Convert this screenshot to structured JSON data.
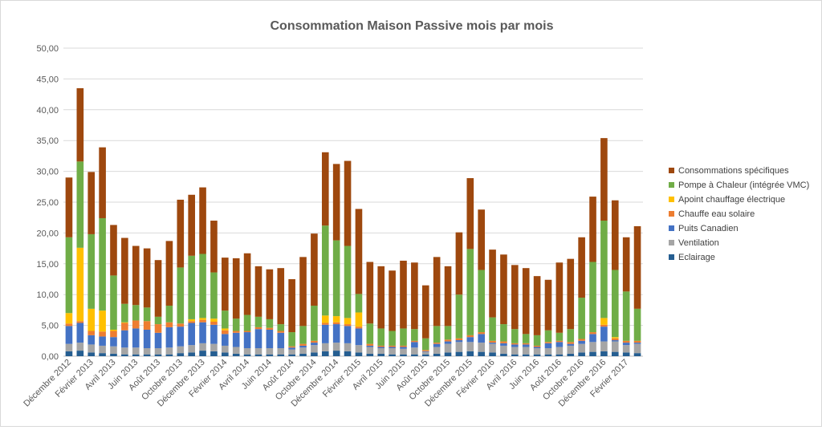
{
  "chart_data": {
    "type": "bar",
    "stacked": true,
    "title": "Consommation Maison Passive mois par mois",
    "xlabel": "",
    "ylabel": "",
    "ylim": [
      0,
      50
    ],
    "yticks": [
      "0,00",
      "5,00",
      "10,00",
      "15,00",
      "20,00",
      "25,00",
      "30,00",
      "35,00",
      "40,00",
      "45,00",
      "50,00"
    ],
    "grid": true,
    "legend_position": "right",
    "categories": [
      "Décembre 2012",
      "Janvier 2013",
      "Février 2013",
      "Mars 2013",
      "Avril 2013",
      "Mai 2013",
      "Juin 2013",
      "Juillet 2013",
      "Août 2013",
      "Septembre 2013",
      "Octobre 2013",
      "Novembre 2013",
      "Décembre 2013",
      "Janvier 2014",
      "Février 2014",
      "Mars 2014",
      "Avril 2014",
      "Mai 2014",
      "Juin 2014",
      "Juillet 2014",
      "Août 2014",
      "Septembre 2014",
      "Octobre 2014",
      "Novembre 2014",
      "Décembre 2014",
      "Janvier 2015",
      "Février 2015",
      "Mars 2015",
      "Avril 2015",
      "Mai 2015",
      "Juin 2015",
      "Juillet 2015",
      "Août 2015",
      "Septembre 2015",
      "Octobre 2015",
      "Novembre 2015",
      "Décembre 2015",
      "Janvier 2016",
      "Février 2016",
      "Mars 2016",
      "Avril 2016",
      "Mai 2016",
      "Juin 2016",
      "Juillet 2016",
      "Août 2016",
      "Septembre 2016",
      "Octobre 2016",
      "Novembre 2016",
      "Décembre 2016",
      "Janvier 2017",
      "Février 2017",
      "Mars 2017"
    ],
    "visible_x_labels": [
      "Décembre 2012",
      "Février 2013",
      "Avril 2013",
      "Juin 2013",
      "Août 2013",
      "Octobre 2013",
      "Décembre 2013",
      "Février 2014",
      "Avril 2014",
      "Juin 2014",
      "Août 2014",
      "Octobre 2014",
      "Décembre 2014",
      "Février 2015",
      "Avril 2015",
      "Juin 2015",
      "Août 2015",
      "Octobre 2015",
      "Décembre 2015",
      "Février 2016",
      "Avril 2016",
      "Juin 2016",
      "Août 2016",
      "Octobre 2016",
      "Décembre 2016",
      "Février 2017"
    ],
    "series": [
      {
        "name": "Eclairage",
        "color": "#255e91",
        "values": [
          0.8,
          0.9,
          0.6,
          0.5,
          0.4,
          0.3,
          0.3,
          0.3,
          0.3,
          0.3,
          0.5,
          0.6,
          0.9,
          0.8,
          0.6,
          0.4,
          0.3,
          0.3,
          0.3,
          0.3,
          0.3,
          0.4,
          0.6,
          0.8,
          0.9,
          0.8,
          0.6,
          0.4,
          0.4,
          0.3,
          0.3,
          0.3,
          0.3,
          0.4,
          0.6,
          0.7,
          0.8,
          0.7,
          0.6,
          0.4,
          0.3,
          0.3,
          0.3,
          0.3,
          0.3,
          0.4,
          0.6,
          0.7,
          0.8,
          0.7,
          0.6,
          0.5
        ]
      },
      {
        "name": "Ventilation",
        "color": "#a5a5a5",
        "values": [
          1.2,
          1.3,
          1.3,
          1.2,
          1.2,
          1.1,
          1.1,
          1.0,
          1.0,
          1.1,
          1.1,
          1.2,
          1.2,
          1.2,
          1.1,
          1.1,
          1.0,
          1.0,
          1.0,
          1.0,
          0.8,
          1.0,
          1.2,
          1.3,
          1.3,
          1.3,
          1.2,
          1.1,
          0.9,
          1.0,
          0.9,
          1.1,
          0.4,
          1.1,
          1.4,
          1.6,
          1.5,
          1.5,
          1.4,
          1.3,
          1.2,
          1.2,
          1.0,
          1.0,
          1.2,
          1.3,
          1.4,
          1.6,
          1.6,
          1.7,
          1.2,
          1.5
        ]
      },
      {
        "name": "Puits Canadien",
        "color": "#4472c4",
        "values": [
          2.9,
          3.2,
          1.5,
          1.5,
          1.5,
          2.8,
          3.1,
          3.0,
          2.5,
          3.3,
          3.2,
          3.6,
          3.4,
          3.1,
          1.9,
          2.3,
          2.6,
          3.1,
          3.0,
          2.5,
          0.3,
          0.3,
          0.4,
          3.0,
          3.0,
          2.8,
          2.7,
          0.2,
          0.2,
          0.2,
          0.3,
          0.9,
          0.1,
          0.5,
          0.4,
          0.3,
          0.8,
          1.4,
          0.2,
          0.4,
          0.4,
          0.4,
          0.2,
          0.8,
          0.8,
          0.3,
          0.5,
          1.3,
          2.4,
          0.2,
          0.4,
          0.2
        ]
      },
      {
        "name": "Chauffe eau solaire",
        "color": "#ed7d31",
        "values": [
          0.4,
          0.3,
          0.7,
          0.8,
          1.0,
          1.2,
          1.3,
          1.4,
          1.4,
          0.8,
          0.5,
          0.3,
          0.4,
          0.5,
          0.6,
          0.3,
          0.2,
          0.3,
          0.3,
          0.3,
          0.2,
          0.3,
          0.3,
          0.3,
          0.3,
          0.3,
          0.3,
          0.3,
          0.2,
          0.2,
          0.2,
          0.2,
          0.2,
          0.2,
          0.3,
          0.3,
          0.3,
          0.3,
          0.3,
          0.3,
          0.2,
          0.2,
          0.2,
          0.2,
          0.2,
          0.3,
          0.3,
          0.3,
          0.3,
          0.3,
          0.3,
          0.3
        ]
      },
      {
        "name": "Apoint chauffage électrique",
        "color": "#ffc000",
        "values": [
          1.7,
          11.9,
          3.6,
          3.4,
          0.2,
          0.1,
          0.0,
          0.0,
          0.0,
          0.0,
          0.0,
          0.3,
          0.3,
          0.5,
          0.3,
          0.0,
          0.0,
          0.0,
          0.0,
          0.0,
          0.0,
          0.0,
          0.0,
          1.2,
          1.0,
          1.0,
          2.3,
          0.0,
          0.0,
          0.0,
          0.0,
          0.0,
          0.0,
          0.0,
          0.0,
          0.0,
          0.0,
          0.0,
          0.0,
          0.0,
          0.0,
          0.0,
          0.0,
          0.0,
          0.0,
          0.0,
          0.0,
          0.0,
          1.1,
          0.2,
          0.0,
          0.0
        ]
      },
      {
        "name": "Pompe à Chaleur (intégrée VMC)",
        "color": "#70ad47",
        "values": [
          12.3,
          14.0,
          12.1,
          15.0,
          8.8,
          3.0,
          2.5,
          2.2,
          1.2,
          2.7,
          9.1,
          10.3,
          10.4,
          7.5,
          2.9,
          2.0,
          2.6,
          1.7,
          1.4,
          1.1,
          2.3,
          2.9,
          5.7,
          14.6,
          12.3,
          11.7,
          3.0,
          3.3,
          2.8,
          2.4,
          2.8,
          1.9,
          1.9,
          2.7,
          2.2,
          7.1,
          14.0,
          10.1,
          3.8,
          2.8,
          2.3,
          1.5,
          1.7,
          1.9,
          1.3,
          2.1,
          6.7,
          11.4,
          15.8,
          10.9,
          8.0,
          5.2
        ]
      },
      {
        "name": "Consommations spécifiques",
        "color": "#9e480e",
        "values": [
          9.7,
          11.9,
          10.1,
          11.5,
          8.2,
          10.7,
          9.6,
          9.6,
          9.2,
          10.5,
          11.0,
          9.9,
          10.8,
          8.4,
          8.6,
          9.8,
          10.0,
          8.2,
          8.1,
          9.1,
          8.6,
          11.2,
          11.7,
          11.9,
          12.4,
          13.8,
          13.8,
          10.0,
          10.1,
          9.8,
          11.0,
          10.8,
          8.6,
          11.2,
          9.7,
          10.1,
          11.5,
          9.8,
          11.0,
          11.3,
          10.4,
          10.7,
          9.6,
          8.2,
          11.4,
          11.4,
          9.8,
          10.6,
          13.4,
          11.3,
          8.8,
          13.4
        ]
      }
    ]
  }
}
